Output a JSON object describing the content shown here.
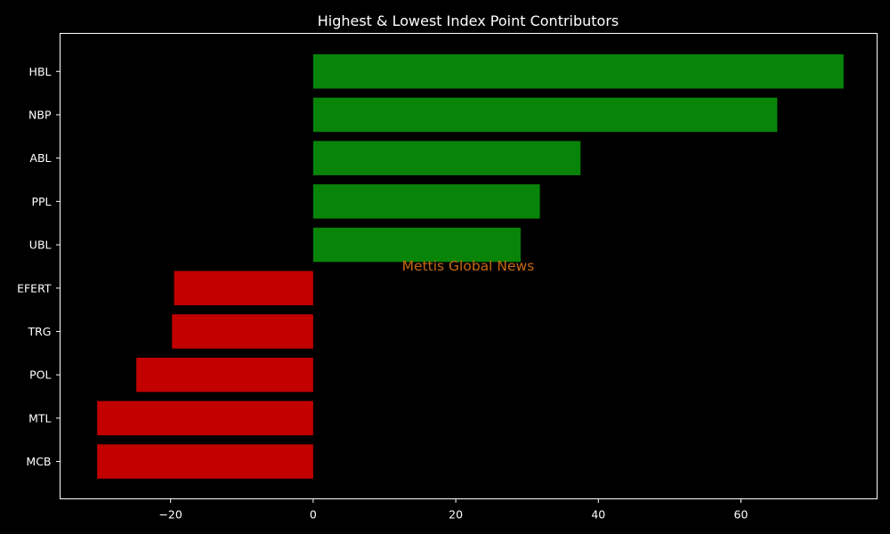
{
  "chart_data": {
    "type": "bar",
    "orientation": "horizontal",
    "title": "Highest & Lowest Index Point Contributors",
    "xlabel": "",
    "ylabel": "",
    "categories": [
      "HBL",
      "NBP",
      "ABL",
      "PPL",
      "UBL",
      "EFERT",
      "TRG",
      "POL",
      "MTL",
      "MCB"
    ],
    "values": [
      74.4,
      65.1,
      37.5,
      31.8,
      29.1,
      -19.5,
      -19.8,
      -24.8,
      -30.3,
      -30.3
    ],
    "x_ticks": [
      -20,
      0,
      20,
      40,
      60
    ],
    "x_tick_labels": [
      "−20",
      "0",
      "20",
      "40",
      "60"
    ],
    "xlim": [
      -35.5,
      79.1
    ],
    "grid": false,
    "colors": {
      "background": "#000000",
      "positive": "#088408",
      "negative": "#c20000",
      "axes": "#ffffff",
      "watermark": "#c46a12"
    }
  },
  "watermark": "Mettis Global News"
}
